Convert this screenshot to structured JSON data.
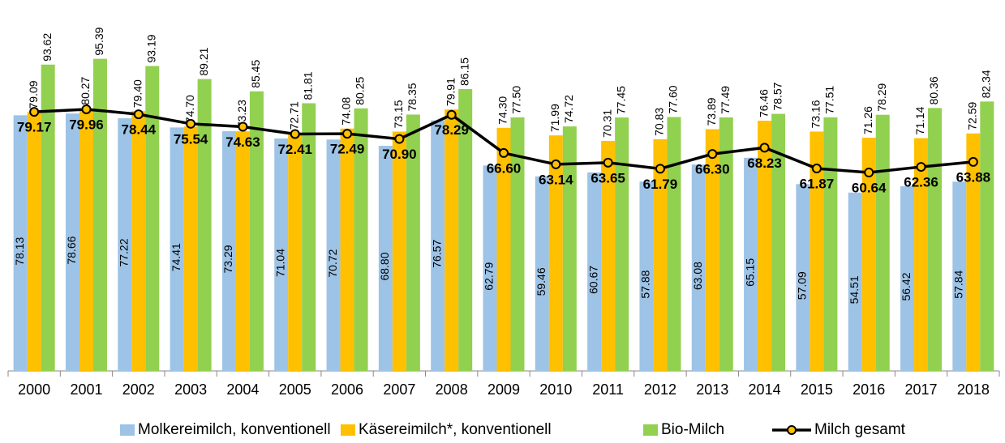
{
  "chart_data": {
    "type": "bar-line",
    "categories": [
      "2000",
      "2001",
      "2002",
      "2003",
      "2004",
      "2005",
      "2006",
      "2007",
      "2008",
      "2009",
      "2010",
      "2011",
      "2012",
      "2013",
      "2014",
      "2015",
      "2016",
      "2017",
      "2018"
    ],
    "ylim": [
      0,
      100
    ],
    "series": [
      {
        "name": "Molkereimilch, konventionell",
        "color": "#9dc3e6",
        "type": "bar",
        "values": [
          78.13,
          78.66,
          77.22,
          74.41,
          73.29,
          71.04,
          70.72,
          68.8,
          76.57,
          62.79,
          59.46,
          60.67,
          57.88,
          63.08,
          65.15,
          57.09,
          54.51,
          56.42,
          57.84
        ],
        "value_labels": [
          "78.13",
          "78.66",
          "77.22",
          "74.41",
          "73.29",
          "71.04",
          "70.72",
          "68.80",
          "76.57",
          "62.79",
          "59.46",
          "60.67",
          "57.88",
          "63.08",
          "65.15",
          "57.09",
          "54.51",
          "56.42",
          "57.84"
        ]
      },
      {
        "name": "Käsereimilch*, konventionell",
        "color": "#ffc000",
        "type": "bar",
        "values": [
          79.09,
          80.27,
          79.4,
          74.7,
          73.23,
          72.71,
          74.08,
          73.15,
          79.91,
          74.3,
          71.99,
          70.31,
          70.83,
          73.89,
          76.46,
          73.16,
          71.26,
          71.14,
          72.59
        ],
        "value_labels": [
          "79.09",
          "80.27",
          "79.40",
          "74.70",
          "73.23",
          "72.71",
          "74.08",
          "73.15",
          "79.91",
          "74.30",
          "71.99",
          "70.31",
          "70.83",
          "73.89",
          "76.46",
          "73.16",
          "71.26",
          "71.14",
          "72.59"
        ]
      },
      {
        "name": "Bio-Milch",
        "color": "#92d050",
        "type": "bar",
        "values": [
          93.62,
          95.39,
          93.19,
          89.21,
          85.45,
          81.81,
          80.25,
          78.35,
          86.15,
          77.5,
          74.72,
          77.45,
          77.6,
          77.49,
          78.57,
          77.51,
          78.29,
          80.36,
          82.34
        ],
        "value_labels": [
          "93.62",
          "95.39",
          "93.19",
          "89.21",
          "85.45",
          "81.81",
          "80.25",
          "78.35",
          "86.15",
          "77.50",
          "74.72",
          "77.45",
          "77.60",
          "77.49",
          "78.57",
          "77.51",
          "78.29",
          "80.36",
          "82.34"
        ]
      },
      {
        "name": "Milch gesamt",
        "color": "#000000",
        "marker_color": "#ffc000",
        "type": "line",
        "values": [
          79.17,
          79.96,
          78.44,
          75.54,
          74.63,
          72.41,
          72.49,
          70.9,
          78.29,
          66.6,
          63.14,
          63.65,
          61.79,
          66.3,
          68.23,
          61.87,
          60.64,
          62.36,
          63.88
        ],
        "value_labels": [
          "79.17",
          "79.96",
          "78.44",
          "75.54",
          "74.63",
          "72.41",
          "72.49",
          "70.90",
          "78.29",
          "66.60",
          "63.14",
          "63.65",
          "61.79",
          "66.30",
          "68.23",
          "61.87",
          "60.64",
          "62.36",
          "63.88"
        ]
      }
    ]
  }
}
